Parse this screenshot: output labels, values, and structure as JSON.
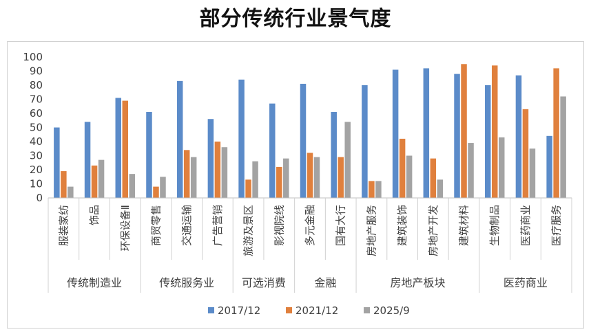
{
  "chart_data": {
    "type": "bar",
    "title": "部分传统行业景气度",
    "ylim": [
      0,
      100
    ],
    "yticks": [
      0,
      10,
      20,
      30,
      40,
      50,
      60,
      70,
      80,
      90,
      100
    ],
    "grid": false,
    "legend_position": "bottom",
    "categories": [
      "服装家纺",
      "饰品",
      "环保设备Ⅱ",
      "商贸零售",
      "交通运输",
      "广告营销",
      "旅游及景区",
      "影视院线",
      "多元金融",
      "国有大行",
      "房地产服务",
      "建筑装饰",
      "房地产开发",
      "建筑材料",
      "生物制品",
      "医药商业",
      "医疗服务"
    ],
    "groups": [
      {
        "label": "传统制造业",
        "count": 3
      },
      {
        "label": "传统服务业",
        "count": 3
      },
      {
        "label": "可选消费",
        "count": 2
      },
      {
        "label": "金融",
        "count": 2
      },
      {
        "label": "房地产板块",
        "count": 4
      },
      {
        "label": "医药商业",
        "count": 3
      }
    ],
    "series": [
      {
        "name": "2017/12",
        "color": "#5b8bc9",
        "values": [
          50,
          54,
          71,
          61,
          83,
          56,
          84,
          67,
          81,
          61,
          80,
          91,
          92,
          88,
          80,
          87,
          44
        ]
      },
      {
        "name": "2021/12",
        "color": "#e0803d",
        "values": [
          19,
          23,
          69,
          8,
          34,
          40,
          13,
          22,
          32,
          29,
          12,
          42,
          28,
          95,
          94,
          63,
          92
        ]
      },
      {
        "name": "2025/9",
        "color": "#a3a3a3",
        "values": [
          8,
          27,
          17,
          15,
          29,
          36,
          26,
          28,
          29,
          54,
          12,
          30,
          13,
          39,
          43,
          35,
          72
        ]
      }
    ]
  }
}
